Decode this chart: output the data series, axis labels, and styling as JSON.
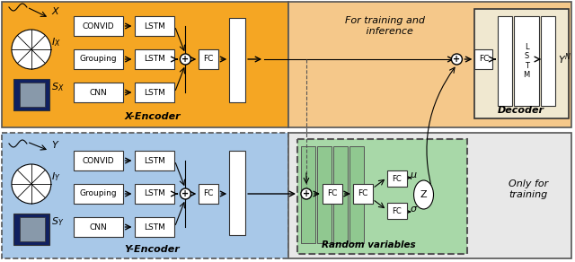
{
  "fig_width": 6.4,
  "fig_height": 2.92,
  "dpi": 100,
  "top_encoder_bg": "#F5A623",
  "top_encoder_label": "X-Encoder",
  "bottom_encoder_bg": "#A8C8E8",
  "bottom_encoder_label": "Y-Encoder",
  "top_right_bg": "#F5C88A",
  "random_vars_bg": "#A8D8A8",
  "random_vars_label": "Random variables",
  "decoder_bg": "#F0E8D0",
  "decoder_label": "Decoder",
  "title_training": "For training and\n   inference",
  "title_only_training": "Only for\ntraining",
  "mu_label": "$\\mu$",
  "sigma_label": "$\\sigma$",
  "output_label": "$Y^N$",
  "X_label": "$X$",
  "Y_label": "$Y$",
  "IX_label": "$I_X$",
  "IY_label": "$I_Y$",
  "SX_label": "$S_X$",
  "SY_label": "$S_Y$"
}
